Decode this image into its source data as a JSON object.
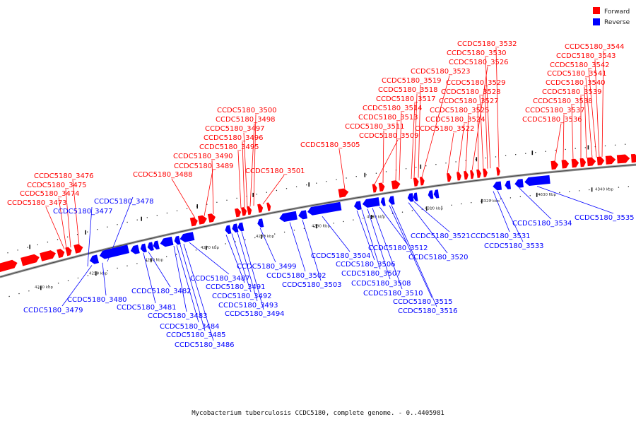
{
  "legend": {
    "forward": {
      "label": "Forward",
      "color": "#ff0000"
    },
    "reverse": {
      "label": "Reverse",
      "color": "#0000ff"
    }
  },
  "caption": "Mycobacterium tuberculosis CCDC5180, complete genome. - 0..4405981",
  "axis": {
    "ticks": [
      "4240 kbp",
      "4250 kbp",
      "4260 kbp",
      "4270 kbp",
      "4280 kbp",
      "4290 kbp",
      "4300 kbp",
      "4310 kbp",
      "4320 kbp",
      "4330 kbp",
      "4340 kbp"
    ]
  },
  "genes": {
    "forward": [
      "CCDC5180_3473",
      "CCDC5180_3474",
      "CCDC5180_3475",
      "CCDC5180_3476",
      "CCDC5180_3488",
      "CCDC5180_3489",
      "CCDC5180_3490",
      "CCDC5180_3495",
      "CCDC5180_3496",
      "CCDC5180_3497",
      "CCDC5180_3498",
      "CCDC5180_3500",
      "CCDC5180_3501",
      "CCDC5180_3505",
      "CCDC5180_3509",
      "CCDC5180_3511",
      "CCDC5180_3513",
      "CCDC5180_3514",
      "CCDC5180_3517",
      "CCDC5180_3518",
      "CCDC5180_3519",
      "CCDC5180_3522",
      "CCDC5180_3523",
      "CCDC5180_3524",
      "CCDC5180_3525",
      "CCDC5180_3526",
      "CCDC5180_3527",
      "CCDC5180_3528",
      "CCDC5180_3529",
      "CCDC5180_3530",
      "CCDC5180_3532",
      "CCDC5180_3536",
      "CCDC5180_3537",
      "CCDC5180_3538",
      "CCDC5180_3539",
      "CCDC5180_3540",
      "CCDC5180_3541",
      "CCDC5180_3542",
      "CCDC5180_3543",
      "CCDC5180_3544"
    ],
    "reverse": [
      "CCDC5180_3477",
      "CCDC5180_3478",
      "CCDC5180_3479",
      "CCDC5180_3480",
      "CCDC5180_3481",
      "CCDC5180_3482",
      "CCDC5180_3483",
      "CCDC5180_3484",
      "CCDC5180_3485",
      "CCDC5180_3486",
      "CCDC5180_3487",
      "CCDC5180_3491",
      "CCDC5180_3492",
      "CCDC5180_3493",
      "CCDC5180_3494",
      "CCDC5180_3499",
      "CCDC5180_3502",
      "CCDC5180_3503",
      "CCDC5180_3504",
      "CCDC5180_3506",
      "CCDC5180_3507",
      "CCDC5180_3508",
      "CCDC5180_3510",
      "CCDC5180_3512",
      "CCDC5180_3515",
      "CCDC5180_3516",
      "CCDC5180_3520",
      "CCDC5180_3521",
      "CCDC5180_3531",
      "CCDC5180_3533",
      "CCDC5180_3534",
      "CCDC5180_3535"
    ]
  }
}
